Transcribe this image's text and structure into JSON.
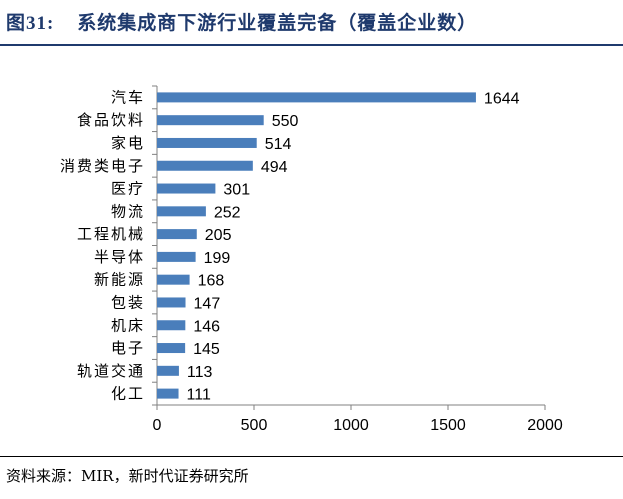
{
  "figure": {
    "number": "图31:",
    "title": "系统集成商下游行业覆盖完备（覆盖企业数）",
    "source": "资料来源：MIR，新时代证券研究所"
  },
  "chart_data": {
    "type": "bar",
    "orientation": "horizontal",
    "categories": [
      "汽车",
      "食品饮料",
      "家电",
      "消费类电子",
      "医疗",
      "物流",
      "工程机械",
      "半导体",
      "新能源",
      "包装",
      "机床",
      "电子",
      "轨道交通",
      "化工"
    ],
    "values": [
      1644,
      550,
      514,
      494,
      301,
      252,
      205,
      199,
      168,
      147,
      146,
      145,
      113,
      111
    ],
    "xlim": [
      0,
      2000
    ],
    "xticks": [
      0,
      500,
      1000,
      1500,
      2000
    ],
    "title": "",
    "xlabel": "",
    "ylabel": "",
    "grid": false,
    "legend": "none",
    "bar_color": "#4a7ebb",
    "data_labels": true
  }
}
